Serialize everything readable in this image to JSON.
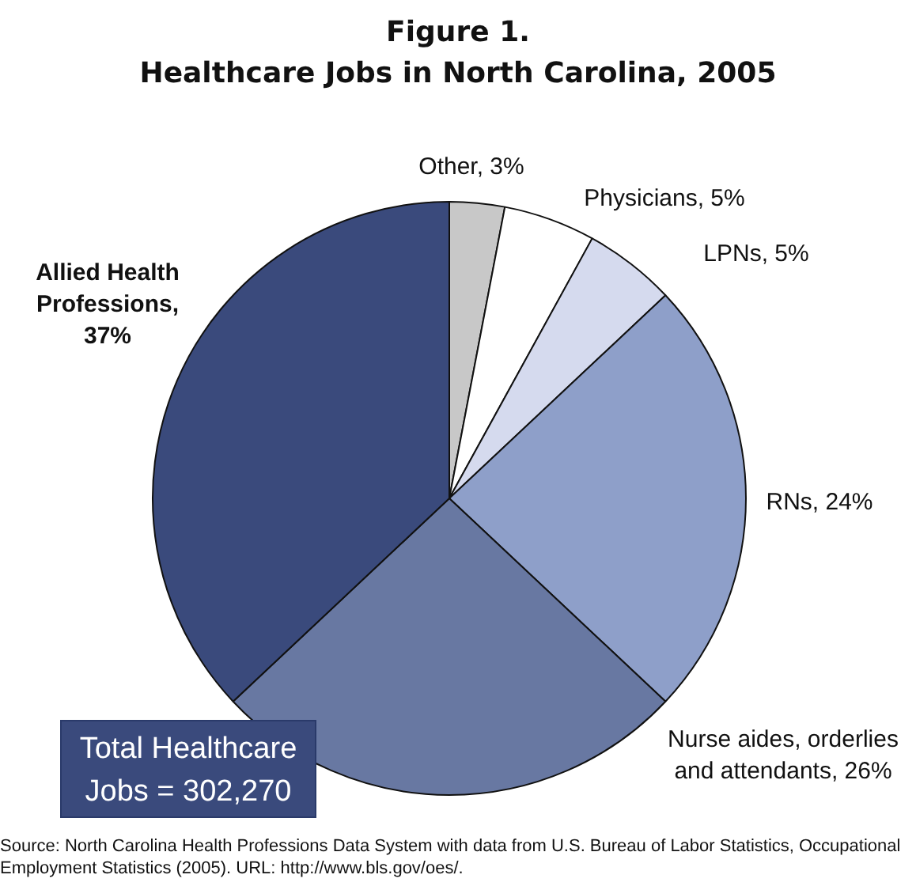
{
  "chart_data": {
    "type": "pie",
    "title": "Figure 1.",
    "subtitle": "Healthcare Jobs in North Carolina, 2005",
    "categories": [
      "Other, 3%",
      "Physicians, 5%",
      "LPNs, 5%",
      "RNs, 24%",
      "Nurse aides, orderlies and attendants, 26%",
      "Allied Health Professions, 37%"
    ],
    "values": [
      3,
      5,
      5,
      24,
      26,
      37
    ],
    "colors": [
      "#c8c8c8",
      "#ffffff",
      "#d5daee",
      "#8e9fc9",
      "#6878a2",
      "#3a4a7c"
    ],
    "annotations": [
      "Total Healthcare Jobs = 302,270",
      "Source: North Carolina Health Professions Data System with data from U.S. Bureau of Labor Statistics, Occupational Employment Statistics (2005).  URL: http://www.bls.gov/oes/."
    ],
    "legend": false
  }
}
